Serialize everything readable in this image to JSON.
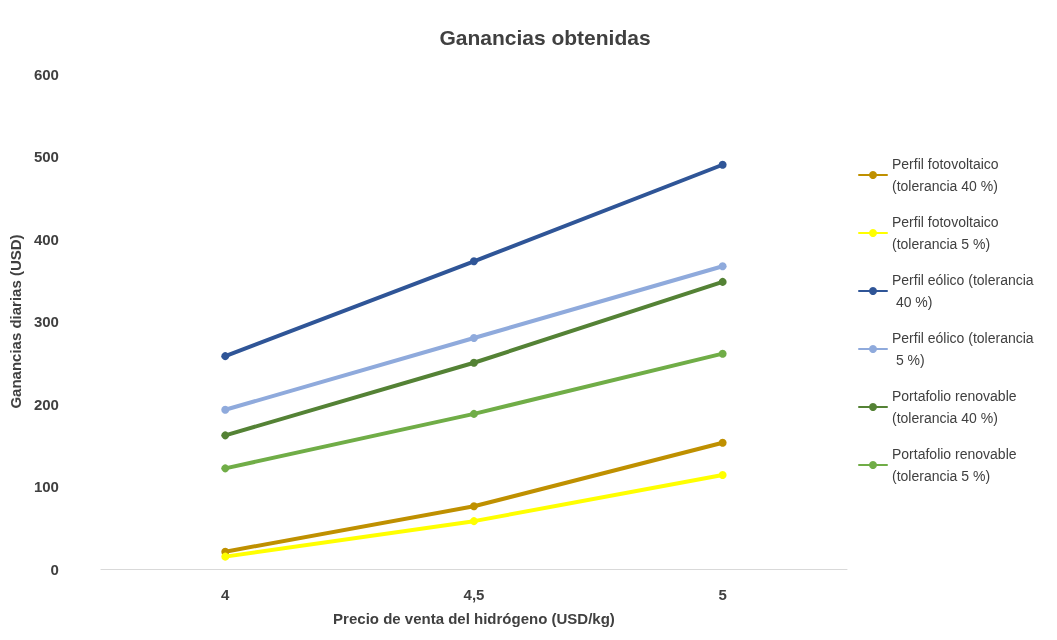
{
  "chart_data": {
    "type": "line",
    "title": "Ganancias obtenidas",
    "xlabel": "Precio de venta del hidrógeno (USD/kg)",
    "ylabel": "Ganancias diarias (USD)",
    "categories": [
      "4",
      "4,5",
      "5"
    ],
    "series": [
      {
        "name": "Perfil fotovoltaico (tolerancia 40 %)",
        "color": "#bf9000",
        "values": [
          21,
          76,
          153
        ]
      },
      {
        "name": "Perfil fotovoltaico (tolerancia 5 %)",
        "color": "#ffff00",
        "values": [
          15,
          58,
          114
        ]
      },
      {
        "name": "Perfil eólico (tolerancia 40 %)",
        "color": "#2f5597",
        "values": [
          258,
          373,
          490
        ]
      },
      {
        "name": "Perfil eólico (tolerancia 5 %)",
        "color": "#8faadc",
        "values": [
          193,
          280,
          367
        ]
      },
      {
        "name": "Portafolio renovable (tolerancia 40 %)",
        "color": "#548235",
        "values": [
          162,
          250,
          348
        ]
      },
      {
        "name": "Portafolio renovable (tolerancia 5 %)",
        "color": "#70ad47",
        "values": [
          122,
          188,
          261
        ]
      }
    ],
    "ylim": [
      0,
      600
    ],
    "yticks": [
      0,
      100,
      200,
      300,
      400,
      500,
      600
    ],
    "grid": false,
    "legend": "right",
    "marker": "circle",
    "line_style": "solid"
  }
}
